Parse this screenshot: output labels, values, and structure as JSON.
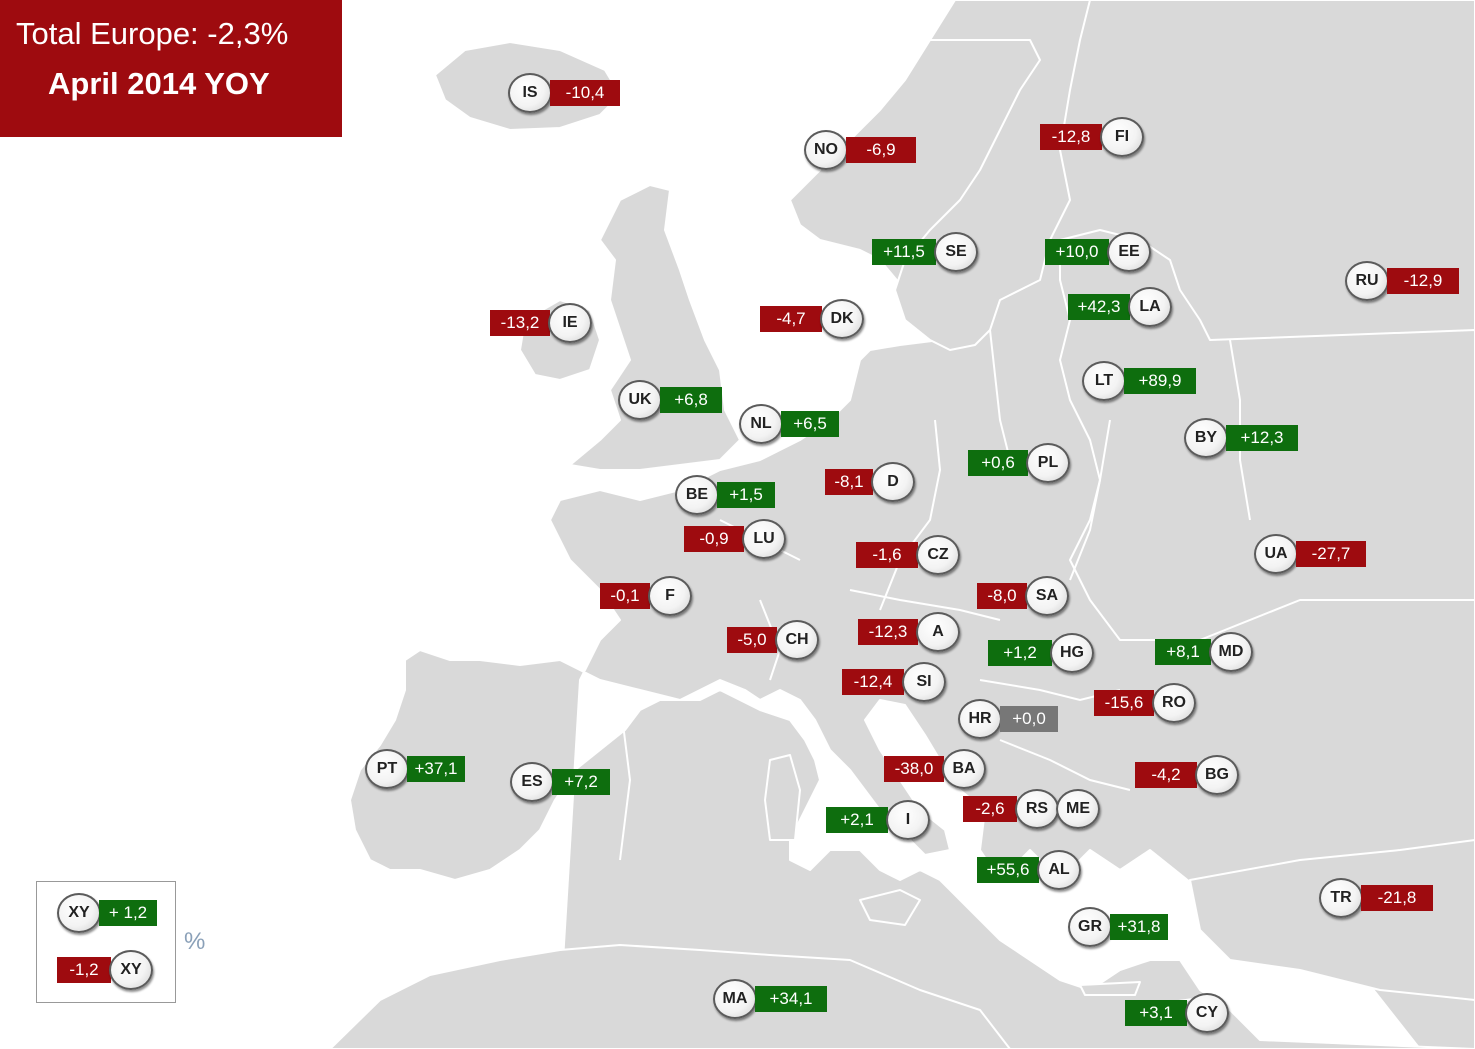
{
  "title": {
    "line1": "Total Europe: -2,3%",
    "line2": "April 2014 YOY",
    "color": "#9e0b0f"
  },
  "colors": {
    "positive": "#0e6e0e",
    "negative": "#9e0b0f",
    "neutral": "#777777",
    "land": "#d9d9d9",
    "border_lines": "#ffffff"
  },
  "legend": {
    "positive": {
      "code": "XY",
      "value": "+ 1,2"
    },
    "negative": {
      "code": "XY",
      "value": "-1,2"
    },
    "unit": "%"
  },
  "countries": [
    {
      "code": "IS",
      "value": "-10,4"
    },
    {
      "code": "NO",
      "value": "-6,9"
    },
    {
      "code": "FI",
      "value": "-12,8"
    },
    {
      "code": "SE",
      "value": "+11,5"
    },
    {
      "code": "EE",
      "value": "+10,0"
    },
    {
      "code": "RU",
      "value": "-12,9"
    },
    {
      "code": "IE",
      "value": "-13,2"
    },
    {
      "code": "DK",
      "value": "-4,7"
    },
    {
      "code": "LA",
      "value": "+42,3"
    },
    {
      "code": "LT",
      "value": "+89,9"
    },
    {
      "code": "UK",
      "value": "+6,8"
    },
    {
      "code": "NL",
      "value": "+6,5"
    },
    {
      "code": "BY",
      "value": "+12,3"
    },
    {
      "code": "PL",
      "value": "+0,6"
    },
    {
      "code": "D",
      "value": "-8,1"
    },
    {
      "code": "BE",
      "value": "+1,5"
    },
    {
      "code": "LU",
      "value": "-0,9"
    },
    {
      "code": "CZ",
      "value": "-1,6"
    },
    {
      "code": "UA",
      "value": "-27,7"
    },
    {
      "code": "F",
      "value": "-0,1"
    },
    {
      "code": "SA",
      "value": "-8,0"
    },
    {
      "code": "CH",
      "value": "-5,0"
    },
    {
      "code": "A",
      "value": "-12,3"
    },
    {
      "code": "HG",
      "value": "+1,2"
    },
    {
      "code": "MD",
      "value": "+8,1"
    },
    {
      "code": "SI",
      "value": "-12,4"
    },
    {
      "code": "RO",
      "value": "-15,6"
    },
    {
      "code": "HR",
      "value": "+0,0"
    },
    {
      "code": "PT",
      "value": "+37,1"
    },
    {
      "code": "ES",
      "value": "+7,2"
    },
    {
      "code": "BA",
      "value": "-38,0"
    },
    {
      "code": "BG",
      "value": "-4,2"
    },
    {
      "code": "RS",
      "value": "-2,6"
    },
    {
      "code": "ME",
      "value": ""
    },
    {
      "code": "I",
      "value": "+2,1"
    },
    {
      "code": "AL",
      "value": "+55,6"
    },
    {
      "code": "TR",
      "value": "-21,8"
    },
    {
      "code": "GR",
      "value": "+31,8"
    },
    {
      "code": "MA",
      "value": "+34,1"
    },
    {
      "code": "CY",
      "value": "+3,1"
    }
  ]
}
